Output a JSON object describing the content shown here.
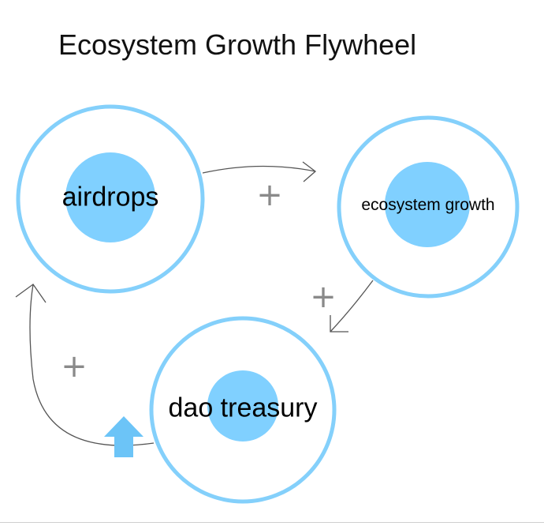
{
  "title": "Ecosystem Growth Flywheel",
  "nodes": [
    {
      "id": "airdrops",
      "label": "airdrops"
    },
    {
      "id": "ecosystem-growth",
      "label": "ecosystem growth"
    },
    {
      "id": "dao-treasury",
      "label": "dao treasury"
    }
  ],
  "edges": [
    {
      "from": "airdrops",
      "to": "ecosystem-growth",
      "polarity": "+"
    },
    {
      "from": "ecosystem-growth",
      "to": "dao-treasury",
      "polarity": "+"
    },
    {
      "from": "dao-treasury",
      "to": "airdrops",
      "polarity": "+"
    }
  ],
  "icons": {
    "up_arrow": "up-arrow-icon"
  },
  "colors": {
    "ring": "#84d0fb",
    "fill": "#80d0ff",
    "arrow": "#555555",
    "plus": "#8a8a8a",
    "up_arrow": "#6cc4f7"
  }
}
